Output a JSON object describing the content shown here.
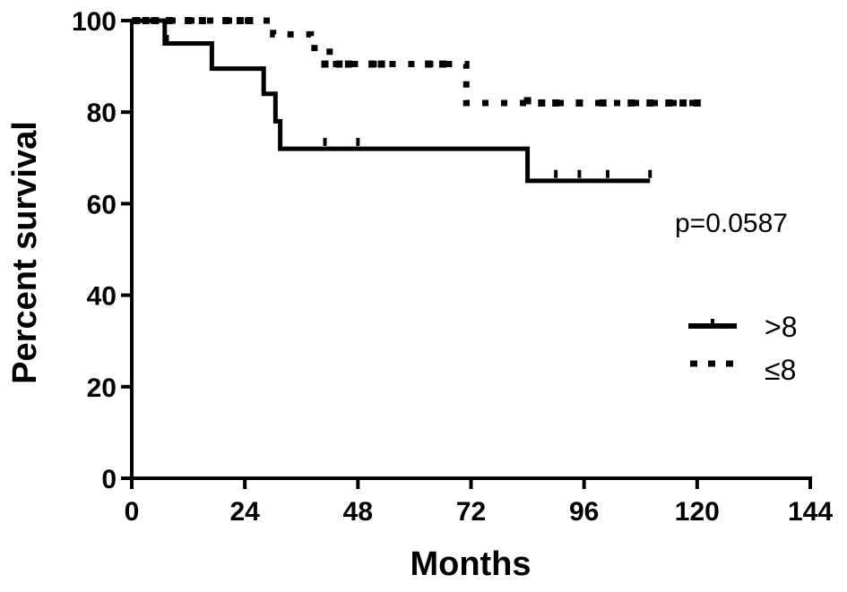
{
  "chart_data": {
    "type": "line",
    "subtype": "kaplan-meier",
    "title": "",
    "xlabel": "Months",
    "ylabel": "Percent survival",
    "xlim": [
      0,
      144
    ],
    "ylim": [
      0,
      100
    ],
    "xticks": [
      0,
      24,
      48,
      72,
      96,
      120,
      144
    ],
    "yticks": [
      0,
      20,
      40,
      60,
      80,
      100
    ],
    "x_tick_labels": [
      "0",
      "24",
      "48",
      "72",
      "96",
      "120",
      "144"
    ],
    "y_tick_labels": [
      "0",
      "20",
      "40",
      "60",
      "80",
      "100"
    ],
    "grid": false,
    "legend_position": "right",
    "annotation": "p=0.0587",
    "series": [
      {
        "name": ">8",
        "style": "solid",
        "color": "#000000",
        "steps": [
          [
            0,
            100
          ],
          [
            7,
            95
          ],
          [
            17,
            89.5
          ],
          [
            28,
            84
          ],
          [
            30.5,
            78
          ],
          [
            31.5,
            72
          ],
          [
            84,
            65
          ],
          [
            110,
            65
          ]
        ],
        "censored": [
          [
            7.5,
            95.5
          ],
          [
            41,
            73
          ],
          [
            48,
            73
          ],
          [
            90,
            66
          ],
          [
            95,
            66
          ],
          [
            101,
            66
          ],
          [
            110,
            66
          ]
        ]
      },
      {
        "name": "≤8",
        "style": "dotted",
        "color": "#000000",
        "steps": [
          [
            0,
            100
          ],
          [
            30,
            97
          ],
          [
            38,
            94
          ],
          [
            42,
            90.5
          ],
          [
            71,
            82
          ],
          [
            121,
            82
          ]
        ],
        "censored": [
          [
            1,
            100
          ],
          [
            3,
            100
          ],
          [
            5,
            100
          ],
          [
            8,
            100
          ],
          [
            12,
            100
          ],
          [
            15,
            100
          ],
          [
            20,
            100
          ],
          [
            23,
            100
          ],
          [
            25,
            100
          ],
          [
            41,
            90.5
          ],
          [
            44,
            90.5
          ],
          [
            46,
            90.5
          ],
          [
            51,
            90.5
          ],
          [
            53,
            90.5
          ],
          [
            63,
            90.5
          ],
          [
            66,
            90.5
          ],
          [
            84,
            82.5
          ],
          [
            87,
            82
          ],
          [
            90,
            82
          ],
          [
            95,
            82
          ],
          [
            100,
            82
          ],
          [
            106,
            82
          ],
          [
            110,
            82
          ],
          [
            114,
            82
          ],
          [
            117,
            82
          ],
          [
            120,
            82
          ]
        ]
      }
    ]
  }
}
